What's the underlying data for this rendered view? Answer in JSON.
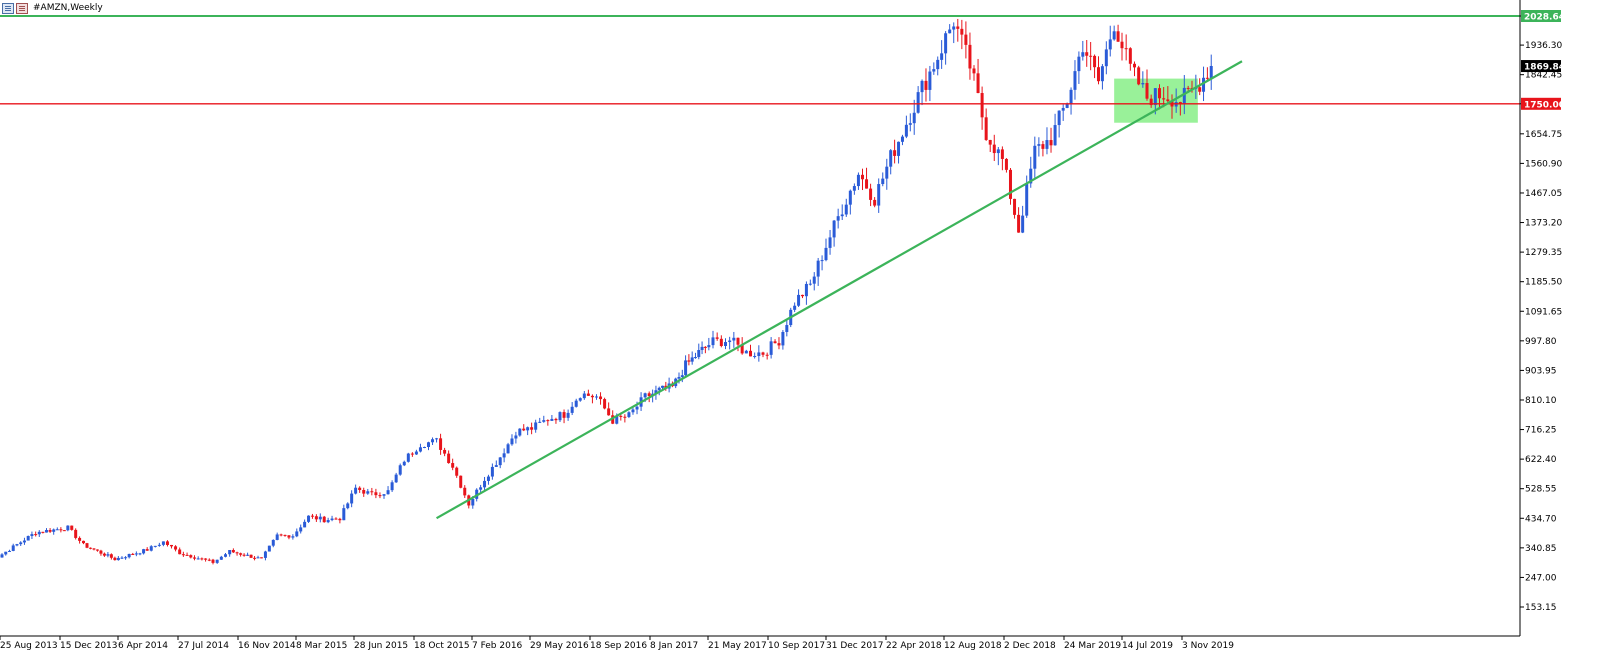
{
  "window": {
    "title": "#AMZN,Weekly"
  },
  "colors": {
    "bull": "#2a5bd7",
    "bear": "#e8141b",
    "resistance": "#3cb45a",
    "support_line": "#e8141b",
    "trendline": "#3cb45a",
    "zone": "#8ef08e",
    "current_price_bg": "#000000"
  },
  "chart_data": {
    "type": "candlestick",
    "symbol": "#AMZN",
    "timeframe": "Weekly",
    "y_ticks": [
      "2028.64",
      "1936.30",
      "1842.45",
      "1750.00",
      "1654.75",
      "1560.90",
      "1467.05",
      "1373.20",
      "1279.35",
      "1185.50",
      "1091.65",
      "997.80",
      "903.95",
      "810.10",
      "716.25",
      "622.40",
      "528.55",
      "434.70",
      "340.85",
      "247.00",
      "153.15"
    ],
    "ylim": [
      60,
      2090
    ],
    "x_ticks": [
      "25 Aug 2013",
      "15 Dec 2013",
      "6 Apr 2014",
      "27 Jul 2014",
      "16 Nov 2014",
      "8 Mar 2015",
      "28 Jun 2015",
      "18 Oct 2015",
      "7 Feb 2016",
      "29 May 2016",
      "18 Sep 2016",
      "8 Jan 2017",
      "21 May 2017",
      "10 Sep 2017",
      "31 Dec 2017",
      "22 Apr 2018",
      "12 Aug 2018",
      "2 Dec 2018",
      "24 Mar 2019",
      "14 Jul 2019",
      "3 Nov 2019"
    ],
    "levels": {
      "resistance": {
        "value": 2028.64,
        "label": "2028.64"
      },
      "support": {
        "value": 1750.0,
        "label": "1750.00"
      },
      "current": {
        "value": 1869.84,
        "label": "1869.84"
      }
    },
    "trendline": {
      "from": {
        "date": "Dec 2015",
        "price": 435
      },
      "to": {
        "date": "Mar 2020",
        "price": 1885
      }
    },
    "consolidation_zone": {
      "from": "Jul 2019",
      "to": "Dec 2019",
      "low": 1690,
      "high": 1830
    },
    "path": [
      {
        "date": "Aug 2013",
        "price": 290
      },
      {
        "date": "Nov 2013",
        "price": 390
      },
      {
        "date": "Jan 2014",
        "price": 405
      },
      {
        "date": "Feb 2014",
        "price": 350
      },
      {
        "date": "Apr 2014",
        "price": 305
      },
      {
        "date": "Jun 2014",
        "price": 335
      },
      {
        "date": "Jul 2014",
        "price": 360
      },
      {
        "date": "Aug 2014",
        "price": 325
      },
      {
        "date": "Oct 2014",
        "price": 295
      },
      {
        "date": "Nov 2014",
        "price": 330
      },
      {
        "date": "Jan 2015",
        "price": 305
      },
      {
        "date": "Feb 2015",
        "price": 380
      },
      {
        "date": "Mar 2015",
        "price": 380
      },
      {
        "date": "Apr 2015",
        "price": 440
      },
      {
        "date": "May 2015",
        "price": 430
      },
      {
        "date": "Jun 2015",
        "price": 435
      },
      {
        "date": "Jul 2015",
        "price": 530
      },
      {
        "date": "Aug 2015",
        "price": 510
      },
      {
        "date": "Sep 2015",
        "price": 520
      },
      {
        "date": "Oct 2015",
        "price": 620
      },
      {
        "date": "Nov 2015",
        "price": 670
      },
      {
        "date": "Dec 2015",
        "price": 680
      },
      {
        "date": "Jan 2016",
        "price": 600
      },
      {
        "date": "Feb 2016",
        "price": 480
      },
      {
        "date": "Mar 2016",
        "price": 560
      },
      {
        "date": "Apr 2016",
        "price": 630
      },
      {
        "date": "May 2016",
        "price": 710
      },
      {
        "date": "Jun 2016",
        "price": 720
      },
      {
        "date": "Jul 2016",
        "price": 750
      },
      {
        "date": "Aug 2016",
        "price": 765
      },
      {
        "date": "Sep 2016",
        "price": 830
      },
      {
        "date": "Oct 2016",
        "price": 820
      },
      {
        "date": "Nov 2016",
        "price": 745
      },
      {
        "date": "Dec 2016",
        "price": 760
      },
      {
        "date": "Jan 2017",
        "price": 820
      },
      {
        "date": "Feb 2017",
        "price": 840
      },
      {
        "date": "Mar 2017",
        "price": 850
      },
      {
        "date": "Apr 2017",
        "price": 920
      },
      {
        "date": "May 2017",
        "price": 960
      },
      {
        "date": "Jun 2017",
        "price": 995
      },
      {
        "date": "Jul 2017",
        "price": 1000
      },
      {
        "date": "Aug 2017",
        "price": 960
      },
      {
        "date": "Sep 2017",
        "price": 960
      },
      {
        "date": "Oct 2017",
        "price": 1000
      },
      {
        "date": "Nov 2017",
        "price": 1120
      },
      {
        "date": "Dec 2017",
        "price": 1175
      },
      {
        "date": "Jan 2018",
        "price": 1300
      },
      {
        "date": "Feb 2018",
        "price": 1420
      },
      {
        "date": "Mar 2018",
        "price": 1530
      },
      {
        "date": "Apr 2018",
        "price": 1450
      },
      {
        "date": "May 2018",
        "price": 1580
      },
      {
        "date": "Jun 2018",
        "price": 1690
      },
      {
        "date": "Jul 2018",
        "price": 1800
      },
      {
        "date": "Aug 2018",
        "price": 1900
      },
      {
        "date": "Sep 2018",
        "price": 2015
      },
      {
        "date": "Oct 2018",
        "price": 1870
      },
      {
        "date": "Nov 2018",
        "price": 1660
      },
      {
        "date": "Dec 2018",
        "price": 1570
      },
      {
        "date": "Jan 2019",
        "price": 1350
      },
      {
        "date": "Feb 2019",
        "price": 1600
      },
      {
        "date": "Mar 2019",
        "price": 1640
      },
      {
        "date": "Apr 2019",
        "price": 1760
      },
      {
        "date": "May 2019",
        "price": 1940
      },
      {
        "date": "Jun 2019",
        "price": 1820
      },
      {
        "date": "Jul 2019",
        "price": 2010
      },
      {
        "date": "Aug 2019",
        "price": 1860
      },
      {
        "date": "Sep 2019",
        "price": 1770
      },
      {
        "date": "Oct 2019",
        "price": 1780
      },
      {
        "date": "Nov 2019",
        "price": 1760
      },
      {
        "date": "Dec 2019",
        "price": 1800
      },
      {
        "date": "Jan 2020",
        "price": 1870
      }
    ]
  }
}
